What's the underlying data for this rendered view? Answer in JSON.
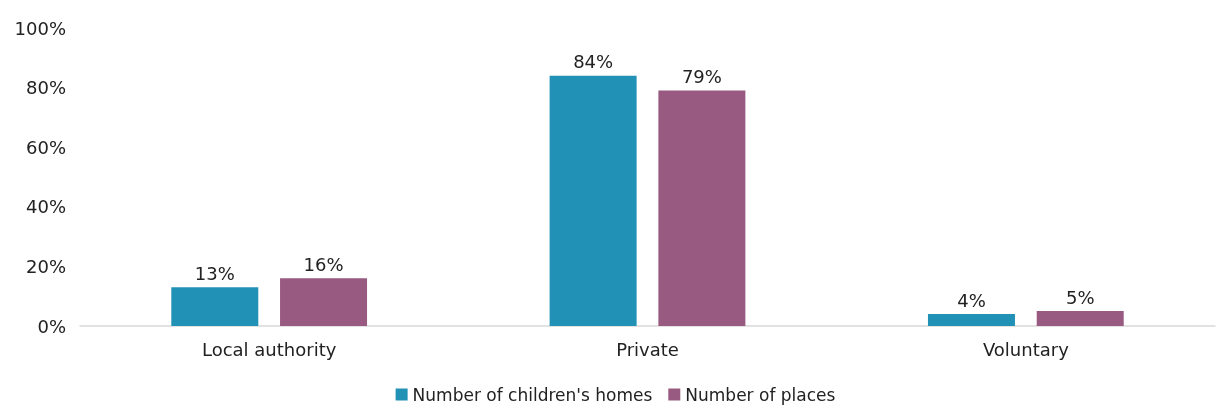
{
  "chart_data": {
    "type": "bar",
    "categories": [
      "Local authority",
      "Private",
      "Voluntary"
    ],
    "series": [
      {
        "name": "Number of children's homes",
        "color": "#2191b5",
        "values": [
          13,
          84,
          4
        ],
        "value_labels": [
          "13%",
          "84%",
          "4%"
        ]
      },
      {
        "name": "Number of places",
        "color": "#985a80",
        "values": [
          16,
          79,
          5
        ],
        "value_labels": [
          "16%",
          "79%",
          "5%"
        ]
      }
    ],
    "ylim": [
      0,
      100
    ],
    "yticks": [
      {
        "value": 0,
        "label": "0%"
      },
      {
        "value": 20,
        "label": "20%"
      },
      {
        "value": 40,
        "label": "40%"
      },
      {
        "value": 60,
        "label": "60%"
      },
      {
        "value": 80,
        "label": "80%"
      },
      {
        "value": 100,
        "label": "100%"
      }
    ],
    "grid": false,
    "legend": "bottom"
  }
}
